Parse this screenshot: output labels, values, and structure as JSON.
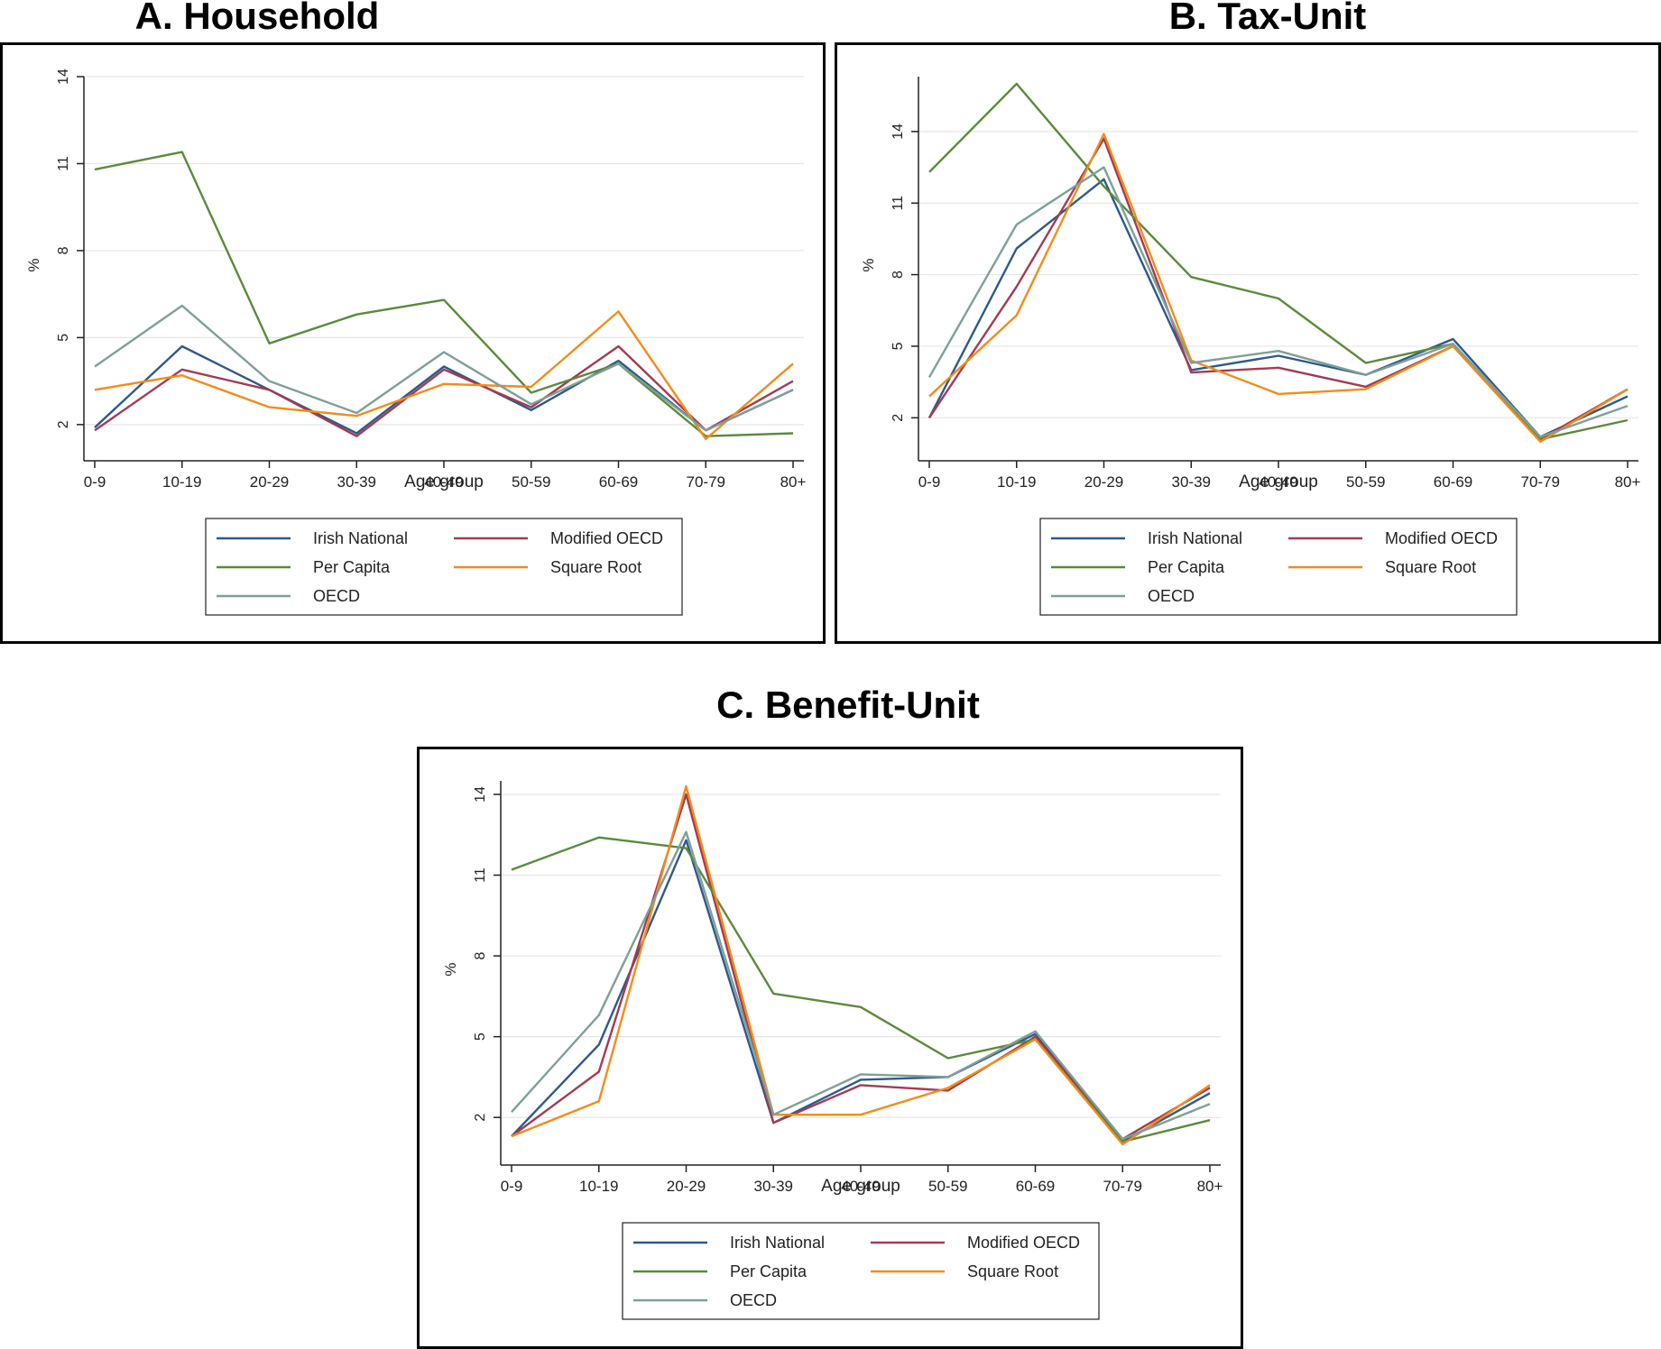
{
  "chart_data": [
    {
      "id": "A",
      "type": "line",
      "title": "A. Household",
      "xlabel": "Age group",
      "ylabel": "%",
      "categories": [
        "0-9",
        "10-19",
        "20-29",
        "30-39",
        "40-49",
        "50-59",
        "60-69",
        "70-79",
        "80+"
      ],
      "ylim": [
        1,
        14
      ],
      "yticks": [
        2,
        5,
        8,
        11,
        14
      ],
      "grid": true,
      "legend_position": "bottom",
      "series": [
        {
          "name": "Irish National",
          "color": "#2e5a87",
          "values": [
            1.9,
            4.7,
            3.2,
            1.7,
            4.0,
            2.5,
            4.2,
            1.8,
            3.2
          ]
        },
        {
          "name": "Modified OECD",
          "color": "#a23b52",
          "values": [
            1.8,
            3.9,
            3.2,
            1.6,
            3.9,
            2.6,
            4.7,
            1.8,
            3.5
          ]
        },
        {
          "name": "Per Capita",
          "color": "#5b8a3c",
          "values": [
            10.8,
            11.4,
            4.8,
            5.8,
            6.3,
            3.1,
            4.1,
            1.6,
            1.7
          ]
        },
        {
          "name": "Square Root",
          "color": "#f28c1c",
          "values": [
            3.2,
            3.7,
            2.6,
            2.3,
            3.4,
            3.3,
            5.9,
            1.5,
            4.1
          ]
        },
        {
          "name": "OECD",
          "color": "#7f9f9a",
          "values": [
            4.0,
            6.1,
            3.5,
            2.4,
            4.5,
            2.7,
            4.1,
            1.8,
            3.2
          ]
        }
      ]
    },
    {
      "id": "B",
      "type": "line",
      "title": "B. Tax-Unit",
      "xlabel": "Age group",
      "ylabel": "%",
      "categories": [
        "0-9",
        "10-19",
        "20-29",
        "30-39",
        "40-49",
        "50-59",
        "60-69",
        "70-79",
        "80+"
      ],
      "ylim": [
        0.5,
        16.3
      ],
      "yticks": [
        2,
        5,
        8,
        11,
        14
      ],
      "grid": true,
      "legend_position": "bottom",
      "series": [
        {
          "name": "Irish National",
          "color": "#2e5a87",
          "values": [
            2.0,
            9.1,
            12.0,
            4.0,
            4.6,
            3.8,
            5.3,
            1.2,
            2.9
          ]
        },
        {
          "name": "Modified OECD",
          "color": "#a23b52",
          "values": [
            2.0,
            7.5,
            13.7,
            3.9,
            4.1,
            3.3,
            5.0,
            1.1,
            3.2
          ]
        },
        {
          "name": "Per Capita",
          "color": "#5b8a3c",
          "values": [
            12.3,
            16.0,
            11.7,
            7.9,
            7.0,
            4.3,
            5.1,
            1.1,
            1.9
          ]
        },
        {
          "name": "Square Root",
          "color": "#f28c1c",
          "values": [
            2.9,
            6.3,
            13.9,
            4.4,
            3.0,
            3.2,
            5.0,
            1.0,
            3.2
          ]
        },
        {
          "name": "OECD",
          "color": "#7f9f9a",
          "values": [
            3.7,
            10.1,
            12.5,
            4.3,
            4.8,
            3.8,
            5.1,
            1.2,
            2.5
          ]
        }
      ]
    },
    {
      "id": "C",
      "type": "line",
      "title": "C. Benefit-Unit",
      "xlabel": "Age group",
      "ylabel": "%",
      "categories": [
        "0-9",
        "10-19",
        "20-29",
        "30-39",
        "40-49",
        "50-59",
        "60-69",
        "70-79",
        "80+"
      ],
      "ylim": [
        0.5,
        14.5
      ],
      "yticks": [
        2,
        5,
        8,
        11,
        14
      ],
      "grid": true,
      "legend_position": "bottom",
      "series": [
        {
          "name": "Irish National",
          "color": "#2e5a87",
          "values": [
            1.3,
            4.7,
            12.3,
            1.8,
            3.4,
            3.5,
            5.1,
            1.1,
            2.9
          ]
        },
        {
          "name": "Modified OECD",
          "color": "#a23b52",
          "values": [
            1.3,
            3.7,
            14.0,
            1.8,
            3.2,
            3.0,
            5.0,
            1.2,
            3.1
          ]
        },
        {
          "name": "Per Capita",
          "color": "#5b8a3c",
          "values": [
            11.2,
            12.4,
            12.0,
            6.6,
            6.1,
            4.2,
            4.9,
            1.1,
            1.9
          ]
        },
        {
          "name": "Square Root",
          "color": "#f28c1c",
          "values": [
            1.3,
            2.6,
            14.3,
            2.1,
            2.1,
            3.1,
            4.9,
            1.0,
            3.2
          ]
        },
        {
          "name": "OECD",
          "color": "#7f9f9a",
          "values": [
            2.2,
            5.8,
            12.6,
            2.1,
            3.6,
            3.5,
            5.2,
            1.2,
            2.5
          ]
        }
      ]
    }
  ]
}
